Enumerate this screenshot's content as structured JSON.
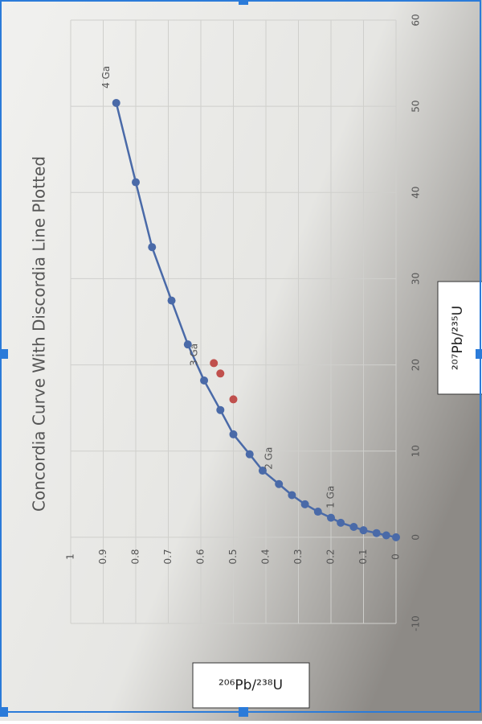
{
  "chart_data": {
    "type": "scatter",
    "title": "Concordia Curve With Discordia Line Plotted",
    "x_label": "²⁰⁷Pb/²³⁵U",
    "y_label": "²⁰⁶Pb/²³⁸U",
    "annotations": [
      "1 Ga",
      "2 Ga",
      "3 Ga",
      "4 Ga"
    ],
    "xlim": [
      -10,
      60
    ],
    "xticks": [
      -10,
      0,
      10,
      20,
      30,
      40,
      50,
      60
    ],
    "ylim": [
      0,
      1
    ],
    "yticks": [
      0,
      0.1,
      0.2,
      0.3,
      0.4,
      0.5,
      0.6,
      0.7,
      0.8,
      0.9,
      1
    ],
    "grid": true,
    "series": [
      {
        "color": "#4a6aa8",
        "line": true,
        "x": [
          0,
          0.22,
          0.48,
          0.81,
          1.2,
          1.68,
          2.26,
          2.97,
          3.83,
          4.89,
          6.17,
          7.73,
          9.63,
          11.94,
          14.76,
          18.19,
          22.37,
          27.46,
          33.66,
          41.19,
          50.39
        ],
        "values": [
          0,
          0.03,
          0.06,
          0.1,
          0.13,
          0.17,
          0.2,
          0.24,
          0.28,
          0.32,
          0.36,
          0.41,
          0.45,
          0.5,
          0.54,
          0.59,
          0.64,
          0.69,
          0.75,
          0.8,
          0.86
        ]
      },
      {
        "color": "#c0504d",
        "line": false,
        "x": [
          20.2,
          19,
          16
        ],
        "values": [
          0.56,
          0.54,
          0.5
        ]
      }
    ]
  }
}
